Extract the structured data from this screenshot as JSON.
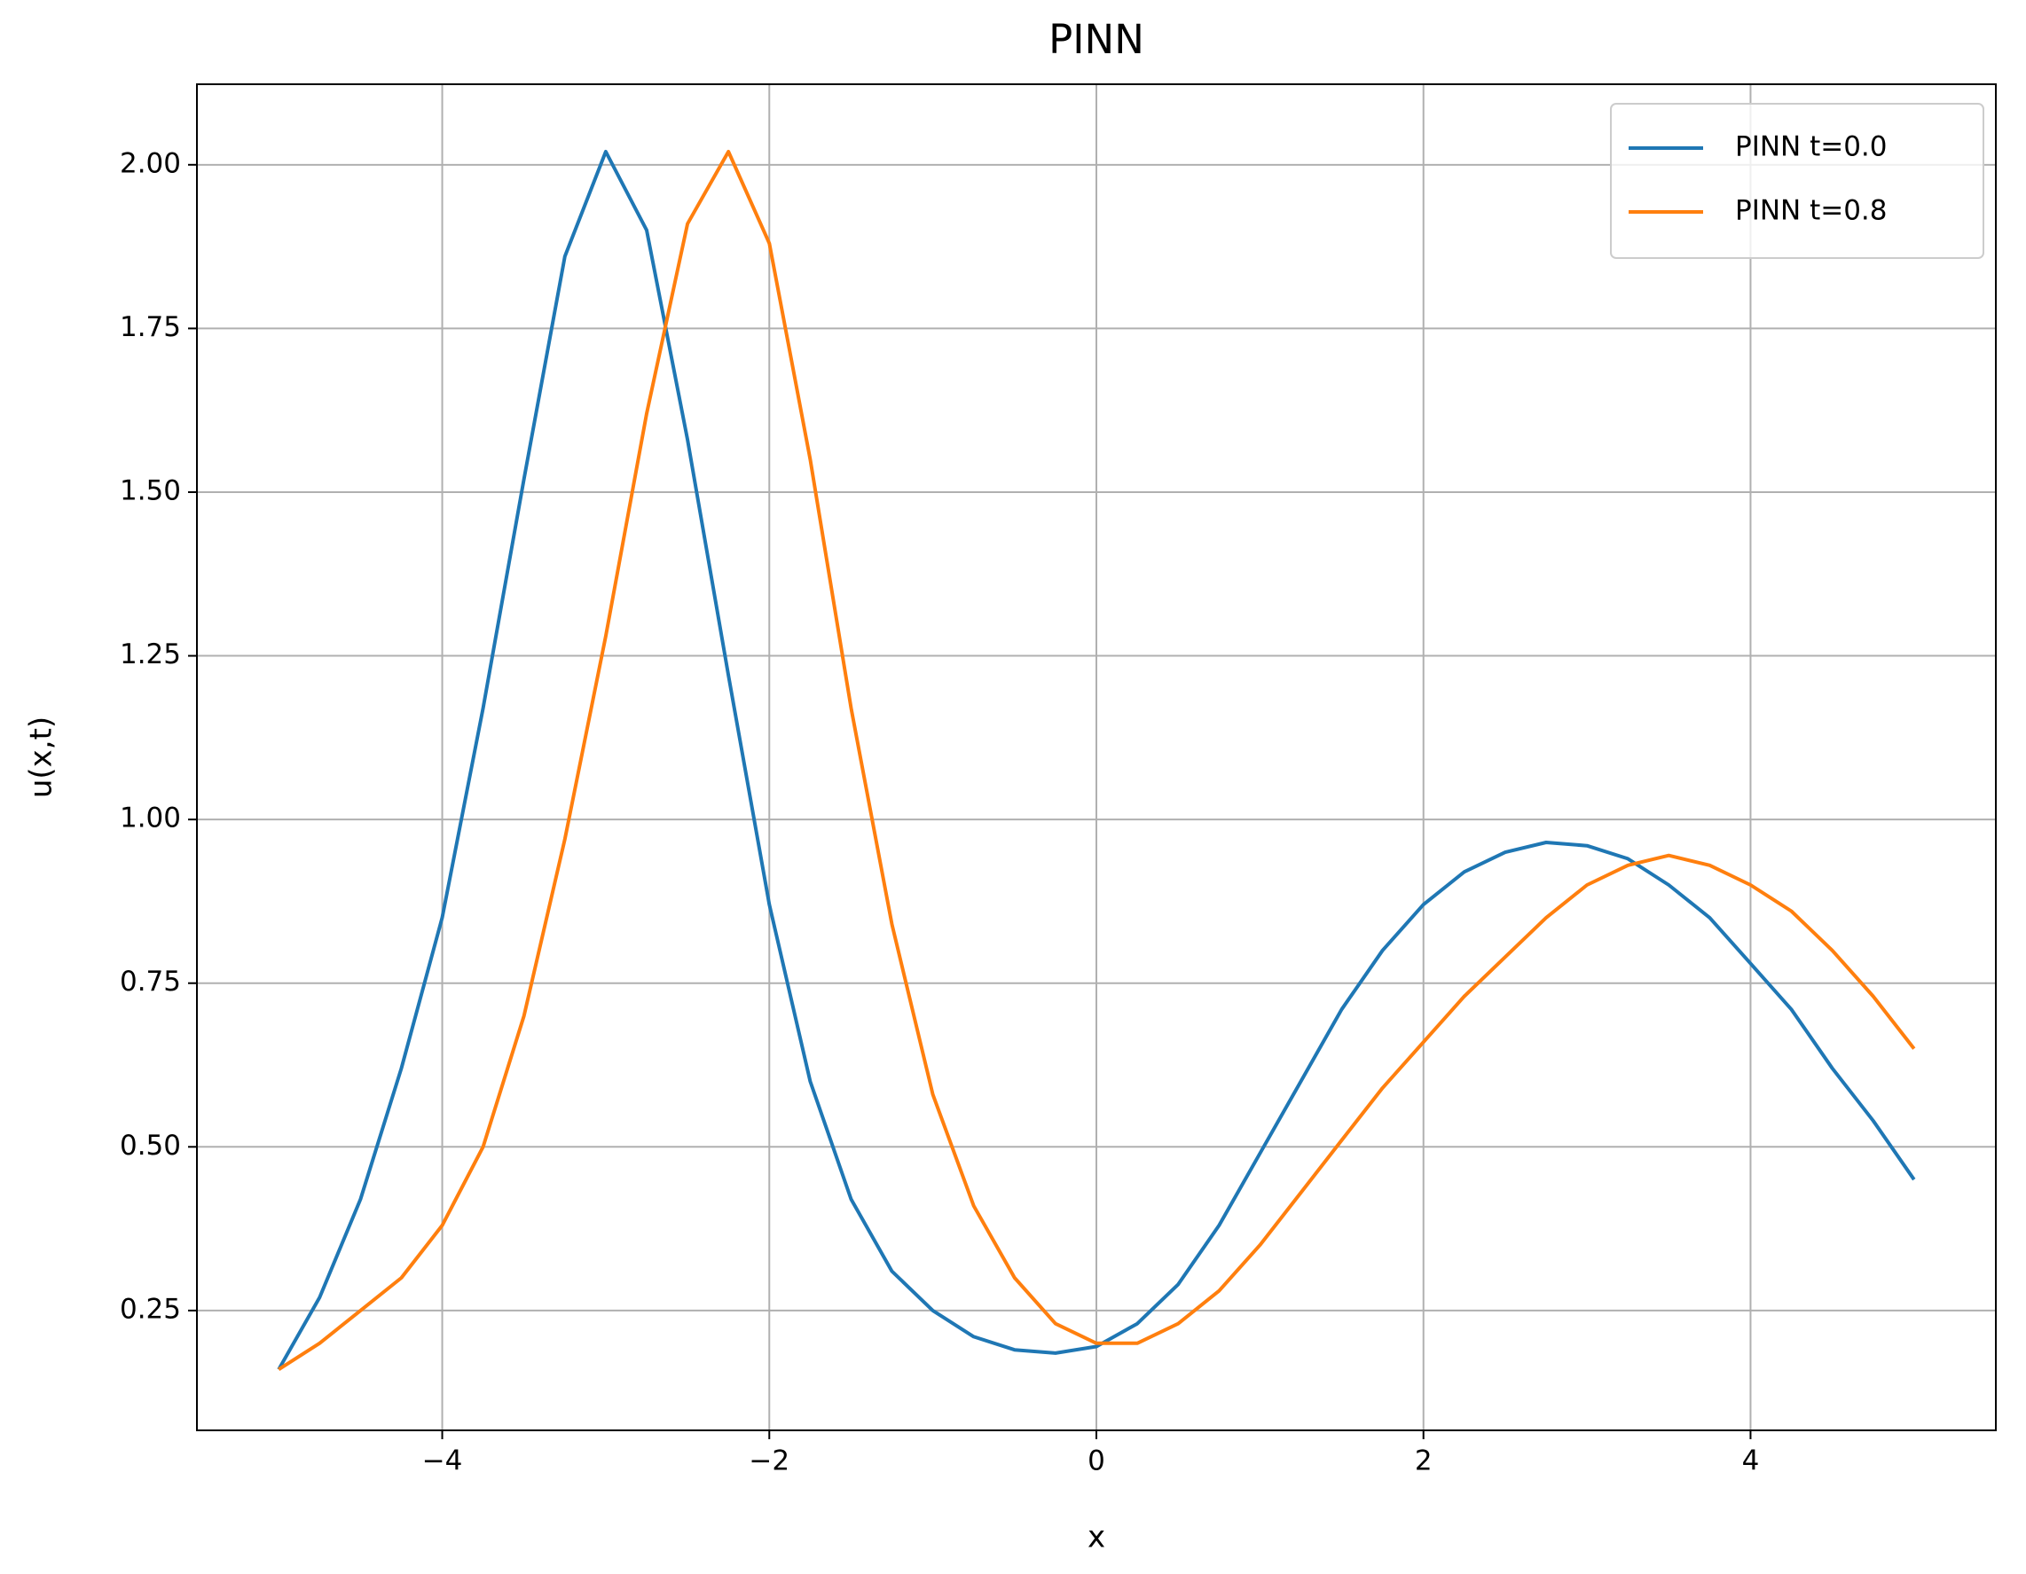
{
  "chart_data": {
    "type": "line",
    "title": "PINN",
    "x_label": "x",
    "y_label": "u(x,t)",
    "x": [
      -5.0,
      -4.75,
      -4.5,
      -4.25,
      -4.0,
      -3.75,
      -3.5,
      -3.25,
      -3.0,
      -2.75,
      -2.5,
      -2.25,
      -2.0,
      -1.75,
      -1.5,
      -1.25,
      -1.0,
      -0.75,
      -0.5,
      -0.25,
      0,
      0.25,
      0.5,
      0.75,
      1.0,
      1.25,
      1.5,
      1.75,
      2.0,
      2.25,
      2.5,
      2.75,
      3.0,
      3.25,
      3.5,
      3.75,
      4.0,
      4.25,
      4.5,
      4.75,
      5.0
    ],
    "series": [
      {
        "name": "PINN t=0.0",
        "color": "#1f77b4",
        "values": [
          0.16,
          0.27,
          0.42,
          0.62,
          0.85,
          1.17,
          1.52,
          1.86,
          2.02,
          1.9,
          1.58,
          1.22,
          0.87,
          0.6,
          0.42,
          0.31,
          0.25,
          0.21,
          0.19,
          0.185,
          0.195,
          0.23,
          0.29,
          0.38,
          0.49,
          0.6,
          0.71,
          0.8,
          0.87,
          0.92,
          0.95,
          0.965,
          0.96,
          0.94,
          0.9,
          0.85,
          0.78,
          0.71,
          0.62,
          0.54,
          0.45
        ]
      },
      {
        "name": "PINN t=0.8",
        "color": "#ff7f0e",
        "values": [
          0.16,
          0.2,
          0.25,
          0.3,
          0.38,
          0.5,
          0.7,
          0.97,
          1.28,
          1.62,
          1.91,
          2.02,
          1.88,
          1.55,
          1.17,
          0.84,
          0.58,
          0.41,
          0.3,
          0.23,
          0.2,
          0.2,
          0.23,
          0.28,
          0.35,
          0.43,
          0.51,
          0.59,
          0.66,
          0.73,
          0.79,
          0.85,
          0.9,
          0.93,
          0.945,
          0.93,
          0.9,
          0.86,
          0.8,
          0.73,
          0.65
        ]
      }
    ],
    "xlim": [
      -5.5,
      5.5
    ],
    "xticks": [
      {
        "value": -4,
        "label": "−4"
      },
      {
        "value": -2,
        "label": "−2"
      },
      0,
      2,
      4
    ],
    "ylim": [
      0.067,
      2.123
    ],
    "yticks": [
      {
        "value": 0.25,
        "label": "0.25"
      },
      {
        "value": 0.5,
        "label": "0.50"
      },
      {
        "value": 0.75,
        "label": "0.75"
      },
      {
        "value": 1,
        "label": "1.00"
      },
      {
        "value": 1.25,
        "label": "1.25"
      },
      {
        "value": 1.5,
        "label": "1.50"
      },
      {
        "value": 1.75,
        "label": "1.75"
      },
      {
        "value": 2,
        "label": "2.00"
      }
    ],
    "grid": true,
    "legend": "upper right"
  }
}
